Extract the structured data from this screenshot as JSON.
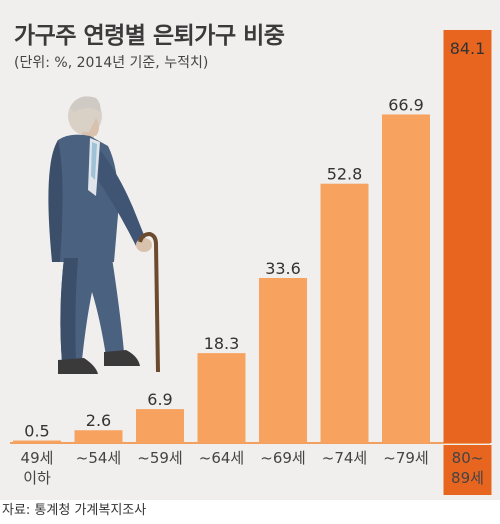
{
  "chart_data": {
    "type": "bar",
    "title": "가구주 연령별 은퇴가구 비중",
    "subtitle": "(단위: %, 2014년 기준, 누적치)",
    "categories": [
      [
        "49세",
        "이하"
      ],
      [
        "~54세"
      ],
      [
        "~59세"
      ],
      [
        "~64세"
      ],
      [
        "~69세"
      ],
      [
        "~74세"
      ],
      [
        "~79세"
      ],
      [
        "80~",
        "89세"
      ]
    ],
    "values": [
      0.5,
      2.6,
      6.9,
      18.3,
      33.6,
      52.8,
      66.9,
      84.1
    ],
    "value_labels": [
      "0.5",
      "2.6",
      "6.9",
      "18.3",
      "33.6",
      "52.8",
      "66.9",
      "84.1"
    ],
    "highlight_index": 7,
    "ylim": [
      0,
      90
    ],
    "colors": {
      "bar": "#f7a35f",
      "bar_highlight": "#e8651f",
      "baseline": "#f0a060",
      "background": "#f1efed",
      "highlight_label_bg": "#5b5b5b"
    },
    "illustration": "elderly-man-with-cane"
  },
  "source": "자료: 통계청 가계복지조사"
}
